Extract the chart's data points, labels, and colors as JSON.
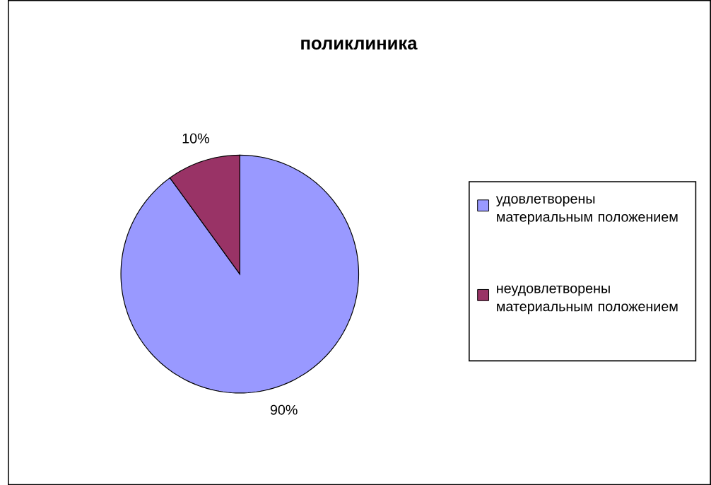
{
  "chart_data": {
    "type": "pie",
    "title": "поликлиника",
    "categories": [
      "удовлетворены материальным положением",
      "неудовлетворены материальным положением"
    ],
    "values": [
      90,
      10
    ],
    "colors": [
      "#9999ff",
      "#993366"
    ],
    "value_labels": [
      "90%",
      "10%"
    ],
    "legend": "right"
  }
}
